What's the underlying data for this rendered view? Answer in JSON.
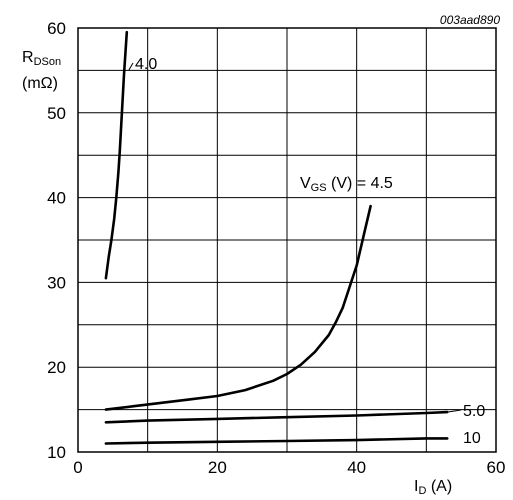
{
  "chart_data": {
    "type": "line",
    "doc_id": "003aad890",
    "xlabel": {
      "main": "I",
      "sub": "D",
      "unit": " (A)"
    },
    "ylabel": {
      "main": "R",
      "sub": "DSon",
      "unit": "(mΩ)"
    },
    "xlim": [
      0,
      60
    ],
    "ylim": [
      10,
      60
    ],
    "xticks": [
      0,
      20,
      40,
      60
    ],
    "yticks": [
      10,
      20,
      30,
      40,
      50,
      60
    ],
    "grid": true,
    "legend_title": {
      "main": "V",
      "sub": "GS",
      "unit": " (V) = 4.5"
    },
    "series": [
      {
        "name": "4.0",
        "x": [
          4.0,
          4.4,
          4.8,
          5.2,
          5.5,
          5.8,
          6.0,
          6.2,
          6.4,
          6.6,
          6.8,
          7.0
        ],
        "y": [
          30.5,
          33,
          35,
          37.5,
          40,
          43,
          45.5,
          48.5,
          51.5,
          54.5,
          57,
          59.5
        ]
      },
      {
        "name": "4.5",
        "x": [
          4,
          8,
          12,
          16,
          20,
          24,
          28,
          30,
          32,
          34,
          36,
          37,
          38,
          39,
          40,
          41,
          42
        ],
        "y": [
          15.0,
          15.4,
          15.8,
          16.2,
          16.6,
          17.3,
          18.4,
          19.2,
          20.3,
          21.8,
          23.8,
          25.3,
          27.0,
          29.5,
          32.0,
          35.5,
          39.0
        ]
      },
      {
        "name": "5.0",
        "x": [
          4,
          10,
          20,
          30,
          40,
          50,
          53
        ],
        "y": [
          13.5,
          13.7,
          13.9,
          14.1,
          14.3,
          14.6,
          14.7
        ]
      },
      {
        "name": "10",
        "x": [
          4,
          10,
          20,
          30,
          40,
          50,
          53
        ],
        "y": [
          11.0,
          11.1,
          11.2,
          11.3,
          11.4,
          11.6,
          11.6
        ]
      }
    ]
  }
}
